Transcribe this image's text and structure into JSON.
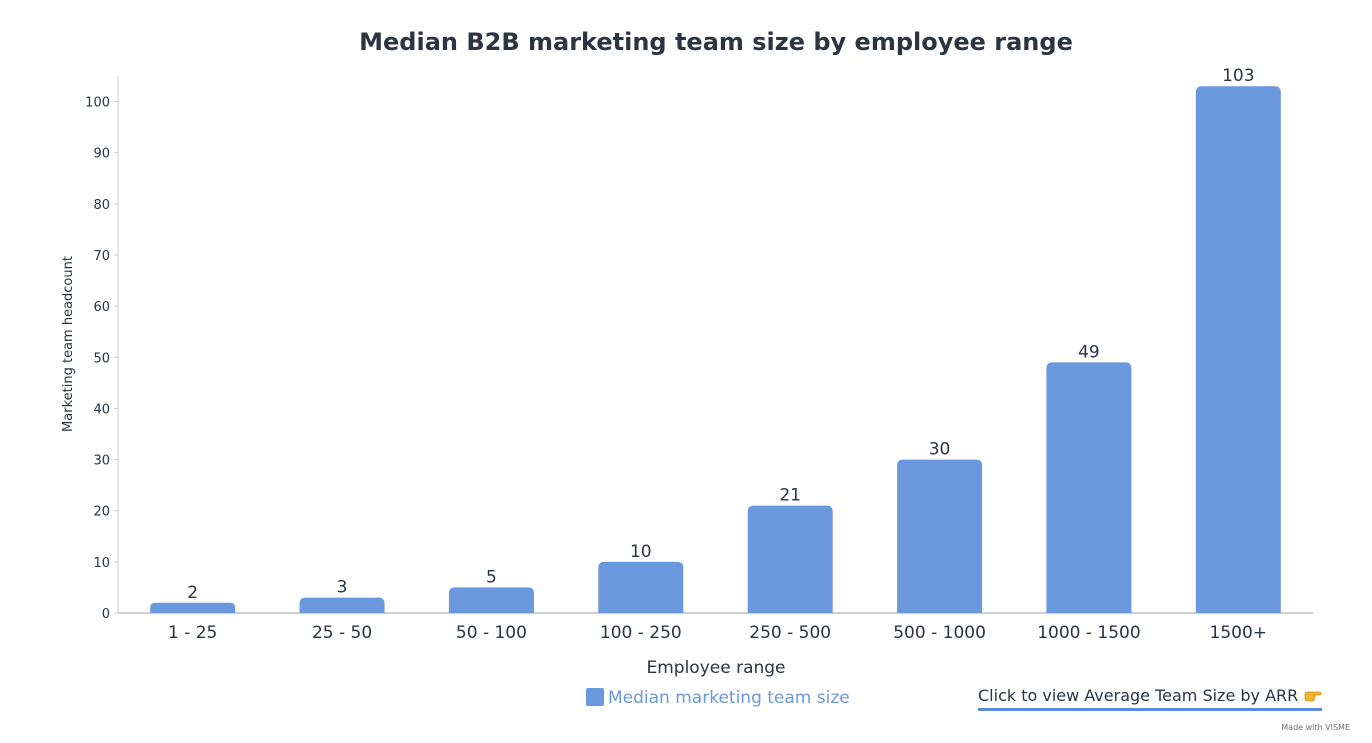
{
  "chart_data": {
    "type": "bar",
    "title": "Median B2B marketing team size by employee range",
    "xlabel": "Employee range",
    "ylabel": "Marketing team headcount",
    "categories": [
      "1 - 25",
      "25 - 50",
      "50 - 100",
      "100 - 250",
      "250 - 500",
      "500 - 1000",
      "1000 - 1500",
      "1500+"
    ],
    "series": [
      {
        "name": "Median marketing team size",
        "values": [
          2,
          3,
          5,
          10,
          21,
          30,
          49,
          103
        ],
        "color": "#6a98dc"
      }
    ],
    "ylim": [
      0,
      105
    ],
    "yticks": [
      0,
      10,
      20,
      30,
      40,
      50,
      60,
      70,
      80,
      90,
      100
    ],
    "data_labels": true,
    "grid": false,
    "legend": "bottom-center"
  },
  "cta": {
    "label": "Click to view Average Team Size by ARR",
    "icon": "pointing-hand-icon"
  },
  "footer": {
    "credit": "Made with VISME"
  },
  "colors": {
    "bar": "#6a98dc",
    "title": "#2b3440",
    "axis_text": "#2b3440",
    "legend_text": "#6a98dc",
    "cta_underline": "#5b8ad6"
  }
}
